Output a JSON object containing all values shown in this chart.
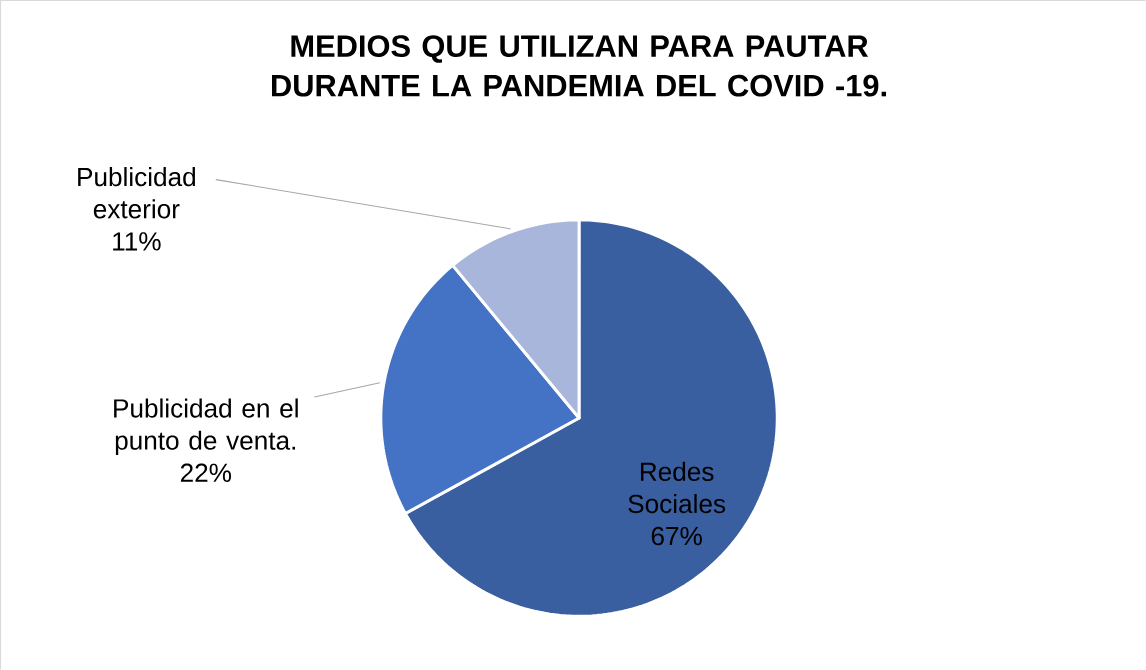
{
  "chart_data": {
    "type": "pie",
    "title": "MEDIOS QUE UTILIZAN PARA PAUTAR DURANTE LA PANDEMIA DEL COVID -19.",
    "categories": [
      "Redes Sociales",
      "Publicidad en el punto de venta.",
      "Publicidad exterior"
    ],
    "values": [
      67,
      22,
      11
    ],
    "colors": [
      "#3a5fa0",
      "#4472c4",
      "#a9b6db"
    ],
    "value_labels": [
      "67%",
      "22%",
      "11%"
    ]
  }
}
